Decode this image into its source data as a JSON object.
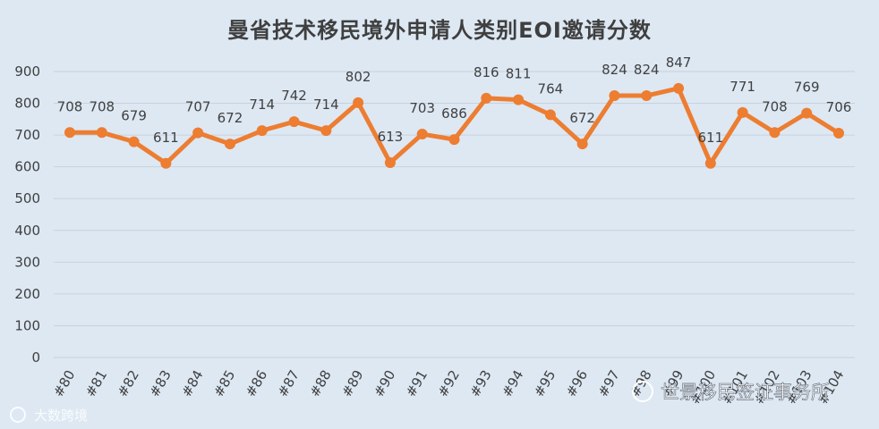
{
  "chart_data": {
    "type": "line",
    "title": "曼省技术移民境外申请人类别EOI邀请分数",
    "xlabel": "",
    "ylabel": "",
    "ylim": [
      0,
      900
    ],
    "yticks": [
      0,
      100,
      200,
      300,
      400,
      500,
      600,
      700,
      800,
      900
    ],
    "grid": true,
    "legend": "none",
    "categories": [
      "#80",
      "#81",
      "#82",
      "#83",
      "#84",
      "#85",
      "#86",
      "#87",
      "#88",
      "#89",
      "#90",
      "#91",
      "#92",
      "#93",
      "#94",
      "#95",
      "#96",
      "#97",
      "#98",
      "#99",
      "#100",
      "#101",
      "#102",
      "#103",
      "#104"
    ],
    "series": [
      {
        "values": [
          708,
          708,
          679,
          611,
          707,
          672,
          714,
          742,
          714,
          802,
          613,
          703,
          686,
          816,
          811,
          764,
          672,
          824,
          824,
          847,
          611,
          771,
          708,
          769,
          706
        ]
      }
    ],
    "line_color": "#ed7d31",
    "grid_color": "#c8d1db",
    "background_color": "#dde8f3"
  },
  "watermarks": {
    "left_text": "大数跨境",
    "right_text": "世景移民签证事务所"
  }
}
